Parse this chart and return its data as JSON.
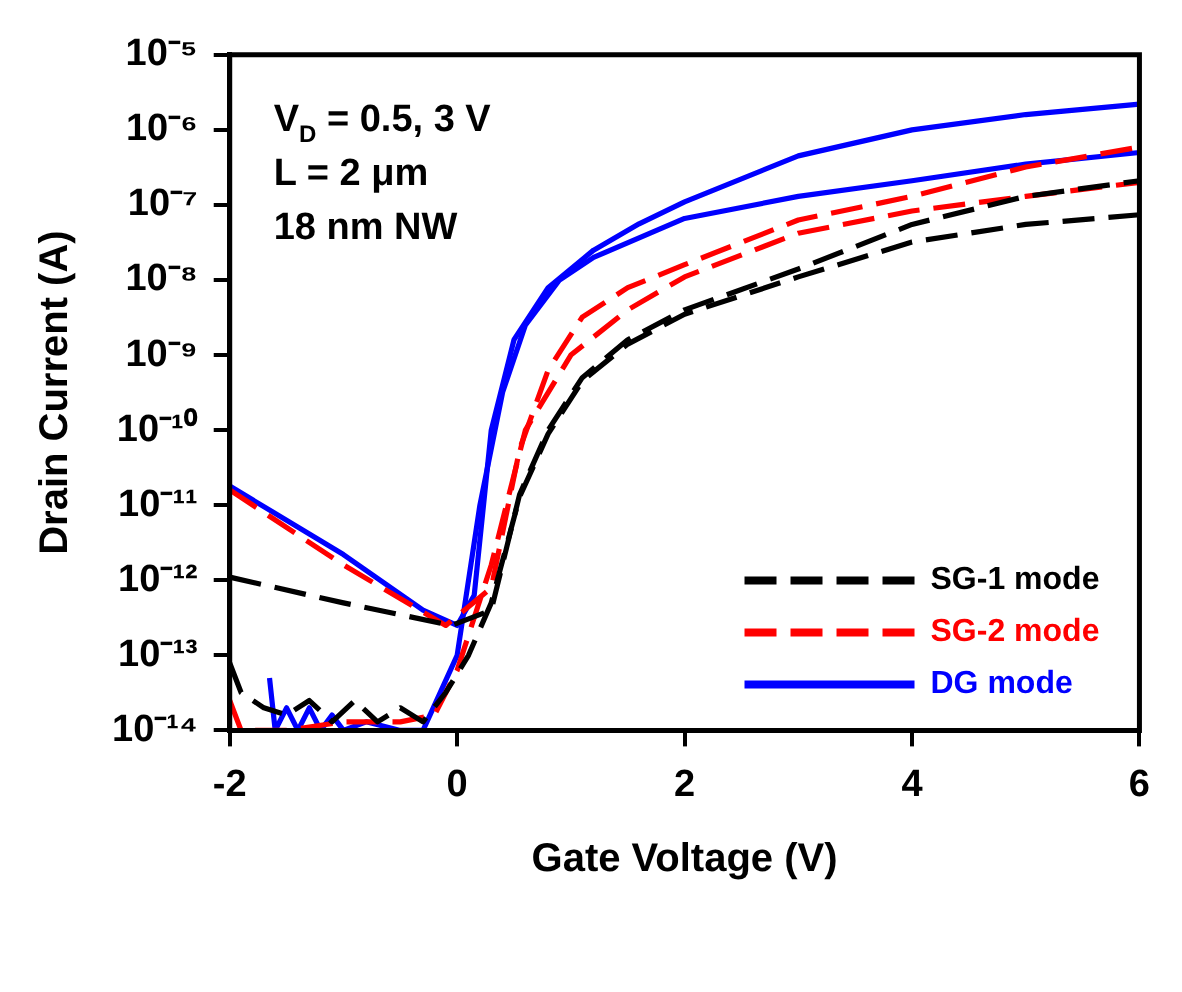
{
  "chart_data": {
    "type": "line",
    "xlabel": "Gate Voltage (V)",
    "ylabel": "Drain Current (A)",
    "xlim": [
      -2,
      6
    ],
    "xticks": [
      -2,
      0,
      2,
      4,
      6
    ],
    "ylim": [
      1e-14,
      1e-05
    ],
    "yticks": [
      {
        "value": 1e-14,
        "label": "10⁻¹⁴"
      },
      {
        "value": 1e-13,
        "label": "10⁻¹³"
      },
      {
        "value": 1e-12,
        "label": "10⁻¹²"
      },
      {
        "value": 1e-11,
        "label": "10⁻¹¹"
      },
      {
        "value": 1e-10,
        "label": "10⁻¹⁰"
      },
      {
        "value": 1e-09,
        "label": "10⁻⁹"
      },
      {
        "value": 1e-08,
        "label": "10⁻⁸"
      },
      {
        "value": 1e-07,
        "label": "10⁻⁷"
      },
      {
        "value": 1e-06,
        "label": "10⁻⁶"
      },
      {
        "value": 1e-05,
        "label": "10⁻⁵"
      }
    ],
    "log": "y",
    "grid": false,
    "legend": "bottom right",
    "marker": "none",
    "annotations": [
      "V$_{D}$ = 0.5, 3 V",
      "L = 2 μm",
      "18 nm NW"
    ],
    "series": [
      {
        "name": "SG-1 mode",
        "color": "#000000",
        "line_style": "dashed",
        "x": [
          -2,
          -1,
          -0.05,
          0.3,
          0.55,
          0.8,
          1.1,
          1.5,
          2,
          3,
          4,
          5,
          6
        ],
        "values": [
          1.1e-12,
          5e-13,
          2.5e-13,
          4e-13,
          1.4e-11,
          1e-10,
          5e-10,
          1.6e-09,
          4e-09,
          1.4e-08,
          5.5e-08,
          1.3e-07,
          2.1e-07
        ]
      },
      {
        "color": "#000000",
        "line_style": "dashed",
        "x": [
          -2,
          -1.9,
          -1.7,
          -1.5,
          -1.3,
          -1.1,
          -0.9,
          -0.7,
          -0.5,
          -0.3,
          -0.1,
          0.1,
          0.3,
          0.55,
          0.8,
          1.1,
          1.5,
          2,
          3,
          4,
          5,
          6
        ],
        "values": [
          7.9e-14,
          3.2e-14,
          2e-14,
          1.6e-14,
          2.5e-14,
          1.3e-14,
          2.5e-14,
          1.3e-14,
          2e-14,
          1.3e-14,
          3.2e-14,
          1e-13,
          5e-13,
          1.3e-11,
          8.9e-11,
          4.5e-10,
          1.4e-09,
          3.5e-09,
          1.1e-08,
          3.2e-08,
          5.5e-08,
          7.4e-08
        ]
      },
      {
        "name": "SG-2 mode",
        "color": "#ff0000",
        "line_style": "dashed",
        "x": [
          -2,
          -1,
          -0.1,
          0.3,
          0.55,
          0.8,
          1.1,
          1.5,
          2,
          3,
          4,
          5,
          6
        ],
        "values": [
          1.6e-11,
          1.6e-12,
          2.5e-13,
          7.9e-13,
          5.6e-11,
          6.3e-10,
          3.2e-09,
          7.9e-09,
          1.6e-08,
          6.3e-08,
          1.3e-07,
          3.2e-07,
          5.9e-07
        ]
      },
      {
        "color": "#ff0000",
        "line_style": "dashed",
        "x": [
          -2,
          -1.9,
          -1.5,
          -1,
          -0.5,
          -0.2,
          0,
          0.3,
          0.6,
          1,
          1.5,
          2,
          3,
          4,
          5,
          6
        ],
        "values": [
          2.5e-14,
          1e-14,
          1e-14,
          1.3e-14,
          1.3e-14,
          1.6e-14,
          6.3e-14,
          1.6e-12,
          1e-10,
          1e-09,
          4e-09,
          1.1e-08,
          4.2e-08,
          8.3e-08,
          1.3e-07,
          2e-07
        ]
      },
      {
        "name": "DG mode",
        "color": "#0000ff",
        "line_style": "solid",
        "x": [
          -2,
          -1,
          -0.3,
          0,
          0.15,
          0.3,
          0.5,
          0.8,
          1.2,
          1.6,
          2,
          3,
          4,
          5,
          6
        ],
        "values": [
          1.8e-11,
          2.2e-12,
          4e-13,
          2.5e-13,
          6.3e-13,
          1e-10,
          1.6e-09,
          7.9e-09,
          2.5e-08,
          5.6e-08,
          1.1e-07,
          4.5e-07,
          1e-06,
          1.6e-06,
          2.2e-06
        ]
      },
      {
        "color": "#0000ff",
        "line_style": "solid",
        "x": [
          -1.65,
          -1.6,
          -1.5,
          -1.4,
          -1.3,
          -1.2,
          -1.1,
          -1,
          -0.8,
          -0.5,
          -0.3,
          0,
          0.2,
          0.4,
          0.6,
          0.9,
          1.2,
          2,
          3,
          4,
          5,
          6
        ],
        "values": [
          5e-14,
          1e-14,
          2e-14,
          1e-14,
          2e-14,
          1e-14,
          1.6e-14,
          1e-14,
          1.3e-14,
          1e-14,
          1e-14,
          1e-13,
          1e-11,
          3.2e-10,
          2.5e-09,
          1e-08,
          2e-08,
          6.6e-08,
          1.3e-07,
          2.1e-07,
          3.5e-07,
          5e-07
        ]
      }
    ]
  }
}
